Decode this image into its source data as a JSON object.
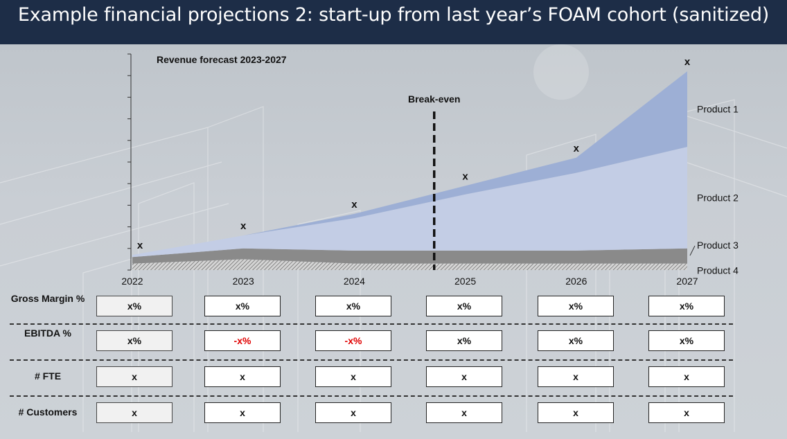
{
  "header": {
    "title": "Example financial projections 2: start-up from last year’s FOAM cohort (sanitized)"
  },
  "chart_data": {
    "type": "area",
    "title": "Revenue forecast 2023-2027",
    "x": [
      "2022",
      "2023",
      "2024",
      "2025",
      "2026",
      "2027"
    ],
    "series": [
      {
        "name": "Product 4",
        "values": [
          0.3,
          0.5,
          0.3,
          0.3,
          0.3,
          0.3
        ],
        "color": "#b0b0b0"
      },
      {
        "name": "Product 3",
        "values": [
          0.3,
          0.5,
          0.6,
          0.6,
          0.6,
          0.7
        ],
        "color": "#8a8a8a"
      },
      {
        "name": "Product 2",
        "values": [
          0.1,
          0.6,
          1.5,
          2.6,
          3.6,
          4.7
        ],
        "color": "#c3cde5"
      },
      {
        "name": "Product 1",
        "values": [
          0,
          0,
          0.2,
          0.4,
          0.7,
          3.5
        ],
        "color": "#9dafd5"
      }
    ],
    "point_labels": [
      "x",
      "x",
      "x",
      "x",
      "x",
      "x"
    ],
    "annotation": {
      "label": "Break-even",
      "x": 2024.72
    },
    "ylim": [
      0,
      10
    ],
    "grid": false
  },
  "metrics": {
    "rows": [
      {
        "label": "Gross Margin %",
        "values": [
          "x%",
          "x%",
          "x%",
          "x%",
          "x%",
          "x%"
        ],
        "negative": [
          false,
          false,
          false,
          false,
          false,
          false
        ]
      },
      {
        "label": "EBITDA %",
        "values": [
          "x%",
          "-x%",
          "-x%",
          "x%",
          "x%",
          "x%"
        ],
        "negative": [
          false,
          true,
          true,
          false,
          false,
          false
        ]
      },
      {
        "label": "# FTE",
        "values": [
          "x",
          "x",
          "x",
          "x",
          "x",
          "x"
        ],
        "negative": [
          false,
          false,
          false,
          false,
          false,
          false
        ]
      },
      {
        "label": "# Customers",
        "values": [
          "x",
          "x",
          "x",
          "x",
          "x",
          "x"
        ],
        "negative": [
          false,
          false,
          false,
          false,
          false,
          false
        ]
      }
    ]
  },
  "colors": {
    "header_bg": "#1d2d47",
    "negative_text": "#e00000",
    "break_even_line": "#111111"
  }
}
